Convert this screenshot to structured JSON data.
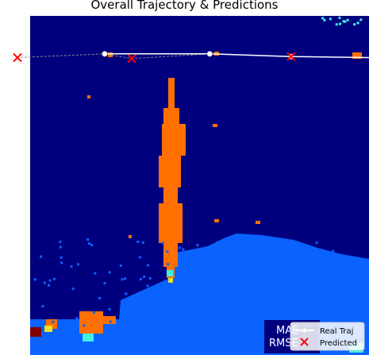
{
  "chart_data": {
    "type": "scatter",
    "title": "Overall Trajectory & Predictions",
    "xlabel": "",
    "ylabel": "",
    "grid": false,
    "legend": {
      "placement": "bottom-right",
      "entries": [
        "Real Traj",
        "Predicted"
      ]
    },
    "series": [
      {
        "name": "Real Traj",
        "kind": "line-with-markers",
        "color": "#ffffff",
        "points": [
          [
            0.22,
            0.888
          ],
          [
            0.53,
            0.888
          ],
          [
            0.77,
            0.88
          ],
          [
            1.0,
            0.877
          ]
        ]
      },
      {
        "name": "Predicted",
        "kind": "x-markers",
        "color": "#ff0000",
        "points": [
          [
            -0.04,
            0.877
          ],
          [
            0.3,
            0.874
          ],
          [
            0.77,
            0.88
          ]
        ]
      }
    ],
    "connector": {
      "color": "#888888",
      "style": "dashed",
      "points": [
        [
          -0.04,
          0.877
        ],
        [
          0.22,
          0.888
        ],
        [
          0.3,
          0.874
        ],
        [
          0.53,
          0.888
        ]
      ]
    },
    "background": "heatmap",
    "metrics_box": {
      "line1": "MAE",
      "line2": "RMSE"
    }
  },
  "colors": {
    "deep_navy": "#00007f",
    "blue": "#0a62ff",
    "orange": "#ff7000",
    "red": "#ff0000",
    "cyan": "#3ff0e0",
    "yellow": "#f0e020",
    "dark_red": "#7f0000"
  }
}
